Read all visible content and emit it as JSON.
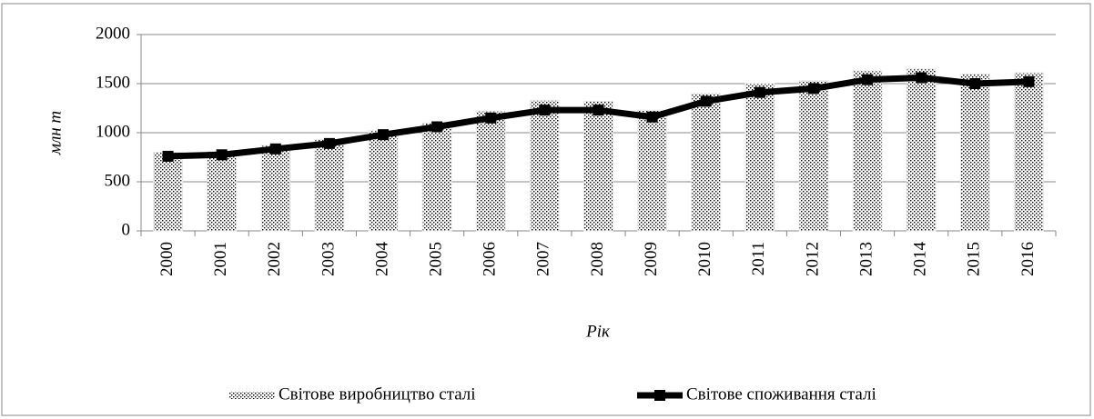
{
  "chart_data": {
    "type": "bar+line",
    "x_label": "Рік",
    "y_label": "млн т",
    "categories": [
      "2000",
      "2001",
      "2002",
      "2003",
      "2004",
      "2005",
      "2006",
      "2007",
      "2008",
      "2009",
      "2010",
      "2011",
      "2012",
      "2013",
      "2014",
      "2015",
      "2016"
    ],
    "series": [
      {
        "name": "Світове виробництво сталі",
        "type": "bar",
        "color": "#000000",
        "values": [
          800,
          810,
          870,
          930,
          1020,
          1100,
          1220,
          1330,
          1320,
          1230,
          1400,
          1500,
          1530,
          1630,
          1650,
          1600,
          1610
        ]
      },
      {
        "name": "Світове споживання сталі",
        "type": "line",
        "color": "#000000",
        "values": [
          760,
          775,
          835,
          890,
          980,
          1060,
          1150,
          1230,
          1230,
          1160,
          1320,
          1410,
          1450,
          1540,
          1560,
          1500,
          1520
        ]
      }
    ],
    "ylim": [
      0,
      2000
    ],
    "yticks": [
      0,
      500,
      1000,
      1500,
      2000
    ],
    "grid": true,
    "legend": "bottom"
  }
}
